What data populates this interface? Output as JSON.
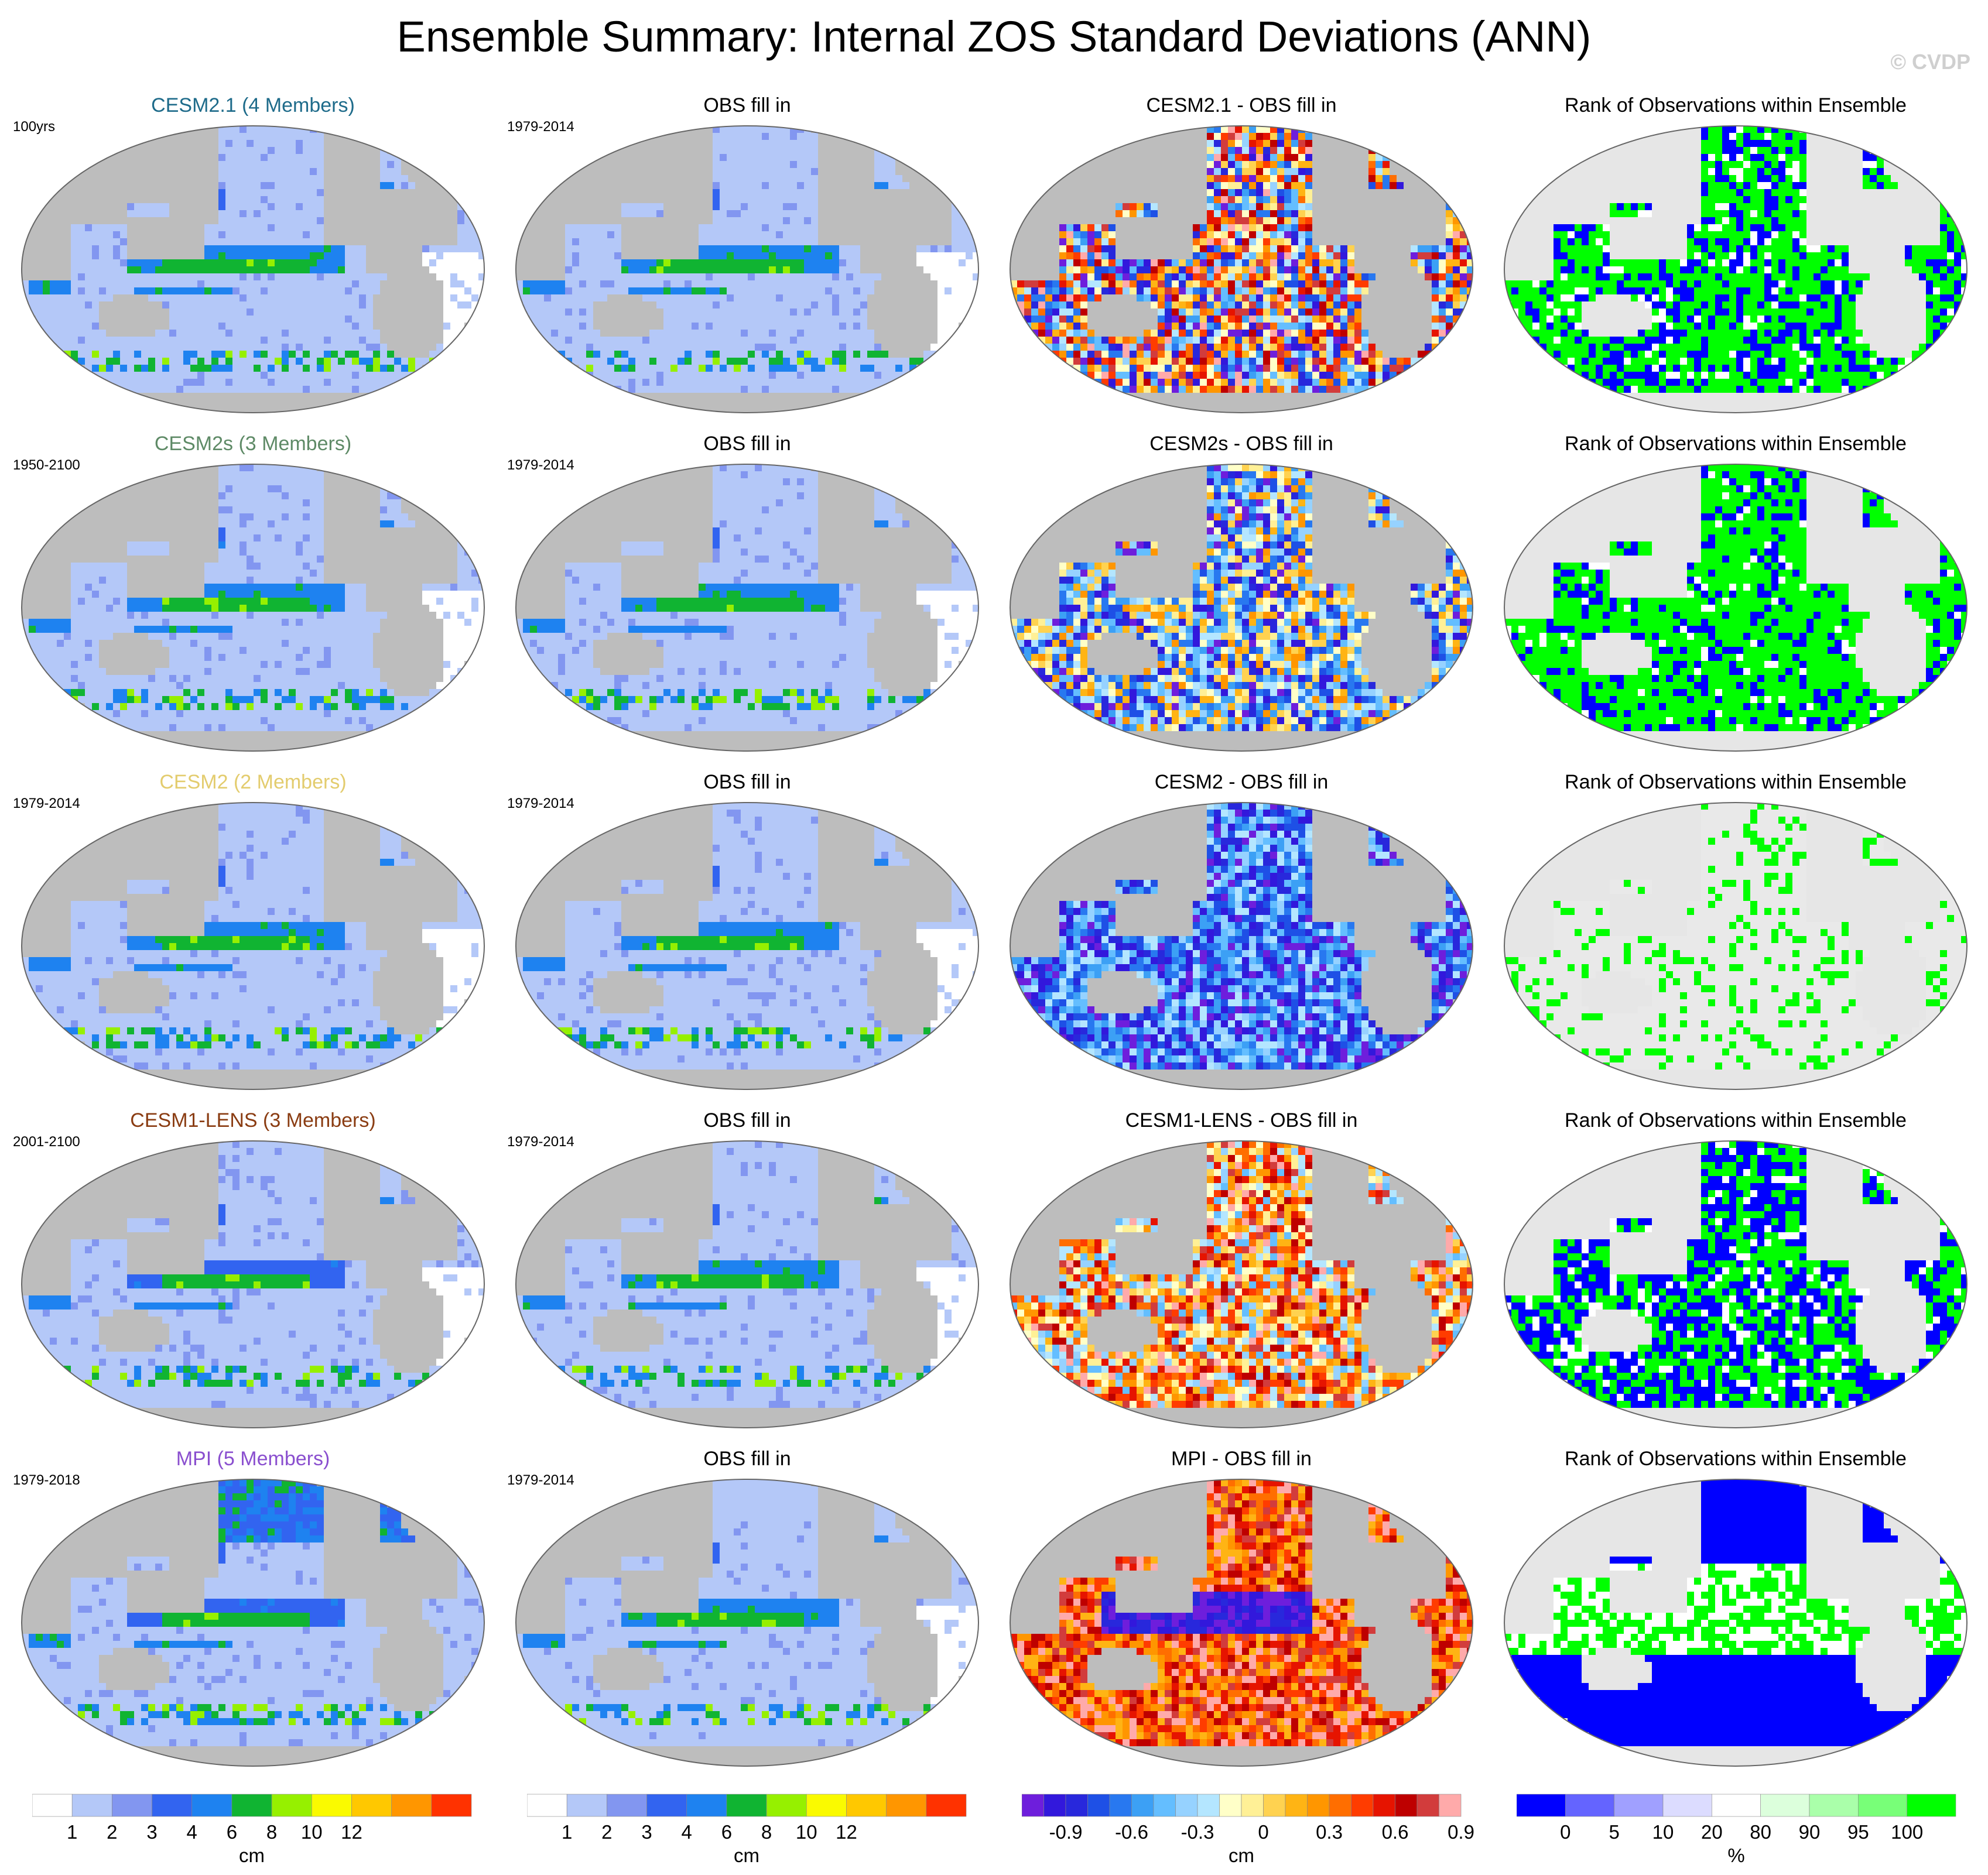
{
  "title": "Ensemble Summary: Internal ZOS Standard Deviations (ANN)",
  "watermark": "© CVDP",
  "colors": {
    "land": "#bdbdbd",
    "model_title_colors": [
      "#1e6b8a",
      "#5e8a66",
      "#e3cc6e",
      "#8a3c12",
      "#8a4fcf"
    ]
  },
  "chart_data": [
    {
      "type": "heatmap",
      "panel": "model-sd",
      "title": "CESM2.1 (4 Members)",
      "period": "100yrs",
      "colorbar": "sd",
      "pattern": "model_a"
    },
    {
      "type": "heatmap",
      "panel": "obs-sd",
      "title": "OBS fill in",
      "period": "1979-2014",
      "colorbar": "sd",
      "pattern": "obs"
    },
    {
      "type": "heatmap",
      "panel": "difference",
      "title": "CESM2.1 - OBS fill in",
      "colorbar": "diff",
      "pattern": "diff_mixed"
    },
    {
      "type": "heatmap",
      "panel": "rank",
      "title": "Rank of Observations within Ensemble",
      "colorbar": "rank",
      "pattern": "rank_mixed"
    },
    {
      "type": "heatmap",
      "panel": "model-sd",
      "title": "CESM2s (3 Members)",
      "period": "1950-2100",
      "colorbar": "sd",
      "pattern": "model_b"
    },
    {
      "type": "heatmap",
      "panel": "obs-sd",
      "title": "OBS fill in",
      "period": "1979-2014",
      "colorbar": "sd",
      "pattern": "obs"
    },
    {
      "type": "heatmap",
      "panel": "difference",
      "title": "CESM2s - OBS fill in",
      "colorbar": "diff",
      "pattern": "diff_mixed_cool"
    },
    {
      "type": "heatmap",
      "panel": "rank",
      "title": "Rank of Observations within Ensemble",
      "colorbar": "rank",
      "pattern": "rank_green"
    },
    {
      "type": "heatmap",
      "panel": "model-sd",
      "title": "CESM2 (2 Members)",
      "period": "1979-2014",
      "colorbar": "sd",
      "pattern": "model_c"
    },
    {
      "type": "heatmap",
      "panel": "obs-sd",
      "title": "OBS fill in",
      "period": "1979-2014",
      "colorbar": "sd",
      "pattern": "obs"
    },
    {
      "type": "heatmap",
      "panel": "difference",
      "title": "CESM2 - OBS fill in",
      "colorbar": "diff",
      "pattern": "diff_cool"
    },
    {
      "type": "heatmap",
      "panel": "rank",
      "title": "Rank of Observations within Ensemble",
      "colorbar": "rank",
      "pattern": "rank_sparse"
    },
    {
      "type": "heatmap",
      "panel": "model-sd",
      "title": "CESM1-LENS (3 Members)",
      "period": "2001-2100",
      "colorbar": "sd",
      "pattern": "model_d"
    },
    {
      "type": "heatmap",
      "panel": "obs-sd",
      "title": "OBS fill in",
      "period": "1979-2014",
      "colorbar": "sd",
      "pattern": "obs"
    },
    {
      "type": "heatmap",
      "panel": "difference",
      "title": "CESM1-LENS - OBS fill in",
      "colorbar": "diff",
      "pattern": "diff_warm"
    },
    {
      "type": "heatmap",
      "panel": "rank",
      "title": "Rank of Observations within Ensemble",
      "colorbar": "rank",
      "pattern": "rank_blue"
    },
    {
      "type": "heatmap",
      "panel": "model-sd",
      "title": "MPI (5 Members)",
      "period": "1979-2018",
      "colorbar": "sd",
      "pattern": "model_e"
    },
    {
      "type": "heatmap",
      "panel": "obs-sd",
      "title": "OBS fill in",
      "period": "1979-2014",
      "colorbar": "sd",
      "pattern": "obs"
    },
    {
      "type": "heatmap",
      "panel": "difference",
      "title": "MPI - OBS fill in",
      "colorbar": "diff",
      "pattern": "diff_pink"
    },
    {
      "type": "heatmap",
      "panel": "rank",
      "title": "Rank of Observations within Ensemble",
      "colorbar": "rank",
      "pattern": "rank_blue_heavy"
    }
  ],
  "colorbars": {
    "sd": {
      "unit": "cm",
      "colors": [
        "#ffffff",
        "#b4c8f8",
        "#8296f0",
        "#3264f0",
        "#1e82f0",
        "#10b432",
        "#96f000",
        "#fafa00",
        "#ffc800",
        "#ff9600",
        "#ff3200"
      ],
      "ticks": [
        "1",
        "2",
        "3",
        "4",
        "6",
        "8",
        "10",
        "12"
      ]
    },
    "sd_obs": {
      "unit": "cm",
      "colors": [
        "#ffffff",
        "#b4c8f8",
        "#8296f0",
        "#3264f0",
        "#1e82f0",
        "#10b432",
        "#96f000",
        "#fafa00",
        "#ffc800",
        "#ff9600",
        "#ff3200"
      ],
      "ticks": [
        "1",
        "2",
        "3",
        "4",
        "6",
        "8",
        "10",
        "12"
      ]
    },
    "diff": {
      "unit": "cm",
      "colors": [
        "#6e1edc",
        "#3218dc",
        "#2828dc",
        "#1e50e6",
        "#2878f0",
        "#3ca0f5",
        "#64beff",
        "#96d2ff",
        "#b4e6ff",
        "#ffffc8",
        "#fff096",
        "#ffd250",
        "#ffb414",
        "#ff9600",
        "#ff6e00",
        "#ff3c00",
        "#e61400",
        "#be0000",
        "#d23c3c",
        "#ffaaaa"
      ],
      "ticks": [
        "-0.9",
        "-0.6",
        "-0.3",
        "0",
        "0.3",
        "0.6",
        "0.9"
      ]
    },
    "rank": {
      "unit": "%",
      "colors": [
        "#0000ff",
        "#6464ff",
        "#a0a0ff",
        "#dcdcff",
        "#ffffff",
        "#dcffdc",
        "#aaffaa",
        "#78ff78",
        "#00ff00"
      ],
      "ticks": [
        "0",
        "5",
        "10",
        "20",
        "80",
        "90",
        "95",
        "100"
      ]
    }
  }
}
